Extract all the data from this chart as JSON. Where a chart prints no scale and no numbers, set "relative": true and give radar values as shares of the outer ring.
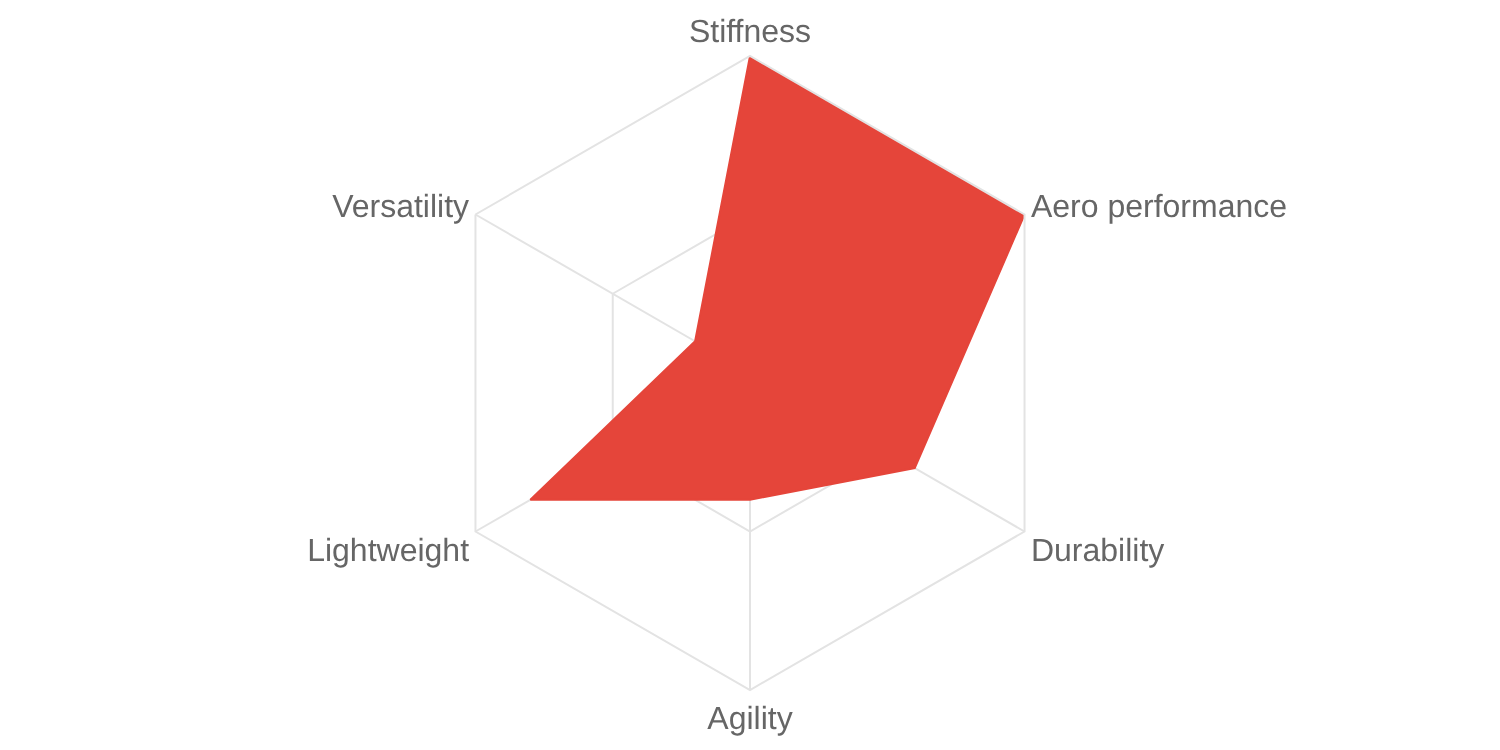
{
  "chart_data": {
    "type": "radar",
    "relative": true,
    "categories": [
      "Stiffness",
      "Aero performance",
      "Durability",
      "Agility",
      "Lightweight",
      "Versatility"
    ],
    "series": [
      {
        "color": "#e5453a",
        "values": [
          1.0,
          1.0,
          0.6,
          0.4,
          0.8,
          0.2
        ]
      }
    ],
    "grid": true,
    "marker": "none"
  }
}
